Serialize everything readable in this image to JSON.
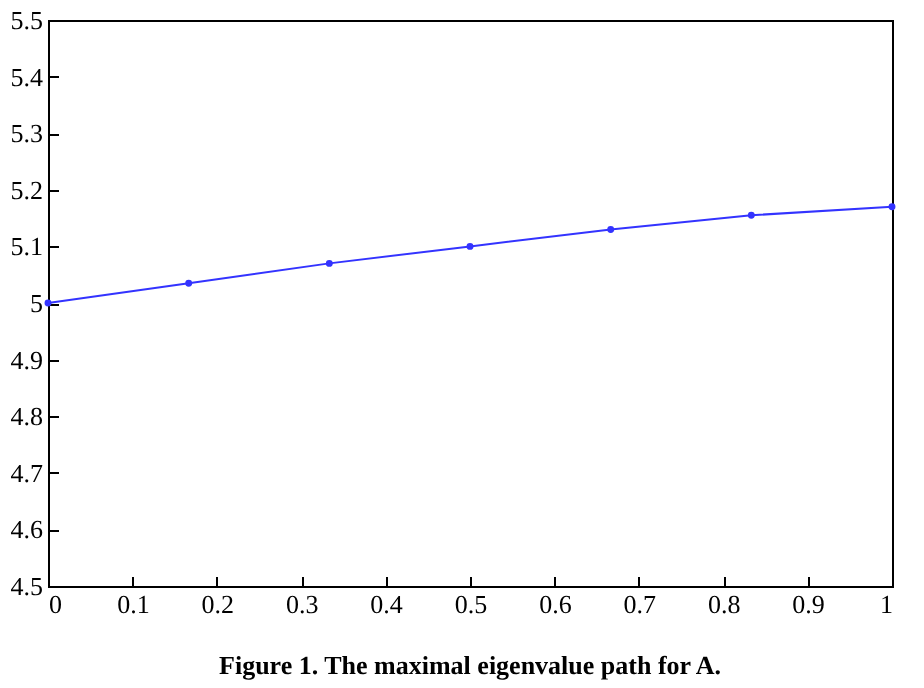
{
  "chart_data": {
    "type": "line",
    "title": "Figure 1. The maximal eigenvalue path for A.",
    "x": [
      0,
      0.1667,
      0.3333,
      0.5,
      0.6667,
      0.8333,
      1
    ],
    "series": [
      {
        "color": "#3333ff",
        "values": [
          5.0,
          5.035,
          5.07,
          5.1,
          5.13,
          5.155,
          5.17
        ]
      }
    ],
    "xlim": [
      0,
      1
    ],
    "xticks": [
      0,
      0.1,
      0.2,
      0.3,
      0.4,
      0.5,
      0.6,
      0.7,
      0.8,
      0.9,
      1
    ],
    "ylim": [
      4.5,
      5.5
    ],
    "yticks": [
      4.5,
      4.6,
      4.7,
      4.8,
      4.9,
      5,
      5.1,
      5.2,
      5.3,
      5.4,
      5.5
    ],
    "grid": false,
    "marker": "circle",
    "line_style": "solid"
  }
}
